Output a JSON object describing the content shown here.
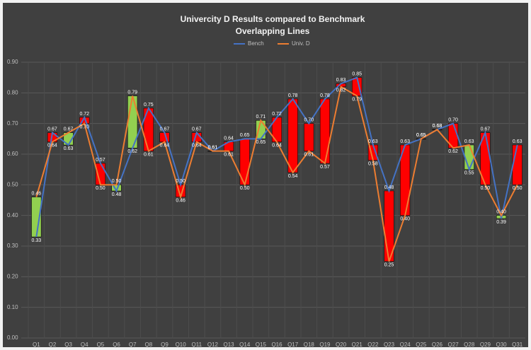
{
  "chart_data": {
    "type": "line",
    "title": "Univercity D Results compared to Benchmark",
    "subtitle": "Overlapping Lines",
    "categories": [
      "Q1",
      "Q2",
      "Q3",
      "Q4",
      "Q5",
      "Q6",
      "Q7",
      "Q8",
      "Q9",
      "Q10",
      "Q11",
      "Q12",
      "Q13",
      "Q14",
      "Q15",
      "Q16",
      "Q17",
      "Q18",
      "Q19",
      "Q20",
      "Q21",
      "Q22",
      "Q23",
      "Q24",
      "Q25",
      "Q26",
      "Q27",
      "Q28",
      "Q29",
      "Q30",
      "Q31"
    ],
    "series": [
      {
        "name": "Bench",
        "color": "#4472c4",
        "values": [
          0.33,
          0.67,
          0.63,
          0.72,
          0.57,
          0.48,
          0.62,
          0.75,
          0.67,
          0.5,
          0.67,
          0.61,
          0.64,
          0.65,
          0.65,
          0.72,
          0.78,
          0.7,
          0.78,
          0.83,
          0.85,
          0.63,
          0.48,
          0.63,
          0.65,
          0.68,
          0.7,
          0.55,
          0.67,
          0.39,
          0.63
        ],
        "value_labels": [
          "0.33",
          "0.67",
          "0.63",
          "0.72",
          "0.57",
          "0.48",
          "0.62",
          "0.75",
          "0.67",
          "0.50",
          "0.67",
          "0.61",
          "0.64",
          "0.65",
          "0.65",
          "0.72",
          "0.78",
          "0.70",
          "0.78",
          "0.83",
          "0.85",
          "0.63",
          "0.48",
          "0.63",
          "0.65",
          "0.68",
          "0.70",
          "0.55",
          "0.67",
          "0.39",
          "0.63"
        ]
      },
      {
        "name": "Univ. D",
        "color": "#ed7d31",
        "values": [
          0.46,
          0.64,
          0.67,
          0.7,
          0.5,
          0.5,
          0.79,
          0.61,
          0.64,
          0.46,
          0.64,
          0.61,
          0.61,
          0.5,
          0.71,
          0.64,
          0.54,
          0.61,
          0.57,
          0.82,
          0.79,
          0.58,
          0.25,
          0.4,
          0.65,
          0.68,
          0.62,
          0.63,
          0.5,
          0.4,
          0.5
        ],
        "value_labels": [
          "0.46",
          "0.64",
          "0.67",
          "0.70",
          "0.50",
          "0.50",
          "0.79",
          "0.61",
          "0.64",
          "0.46",
          "0.64",
          "0.61",
          "0.61",
          "0.50",
          "0.71",
          "0.64",
          "0.54",
          "0.61",
          "0.57",
          "0.82",
          "0.79",
          "0.58",
          "0.25",
          "0.40",
          "0.65",
          "0.68",
          "0.62",
          "0.63",
          "0.50",
          "0.40",
          "0.50"
        ]
      }
    ],
    "up_down_bars": {
      "up_color": "#92d050",
      "down_color": "#ff0000"
    },
    "ylim": [
      0,
      0.9
    ],
    "yticks": [
      {
        "value": 0,
        "label": "0.00"
      },
      {
        "value": 0.1,
        "label": "0.10"
      },
      {
        "value": 0.2,
        "label": "0.20"
      },
      {
        "value": 0.3,
        "label": "0.30"
      },
      {
        "value": 0.4,
        "label": "0.40"
      },
      {
        "value": 0.5,
        "label": "0.50"
      },
      {
        "value": 0.6,
        "label": "0.60"
      },
      {
        "value": 0.7,
        "label": "0.70"
      },
      {
        "value": 0.8,
        "label": "0.80"
      },
      {
        "value": 0.9,
        "label": "0.90"
      }
    ],
    "grid": true,
    "legend": "top"
  }
}
